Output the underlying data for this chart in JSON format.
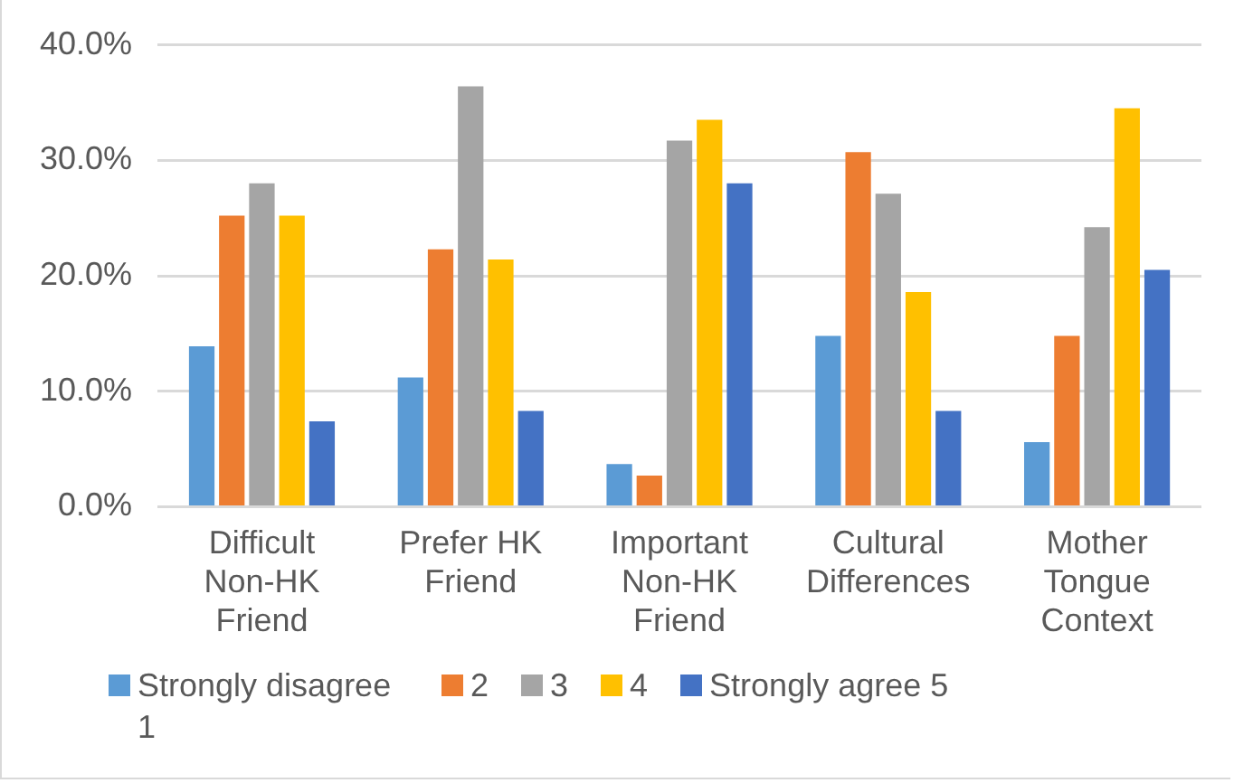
{
  "chart_data": {
    "type": "bar",
    "categories": [
      "Difficult Non-HK Friend",
      "Prefer HK Friend",
      "Important Non-HK Friend",
      "Cultural Differences",
      "Mother Tongue Context"
    ],
    "series": [
      {
        "name": "Strongly disagree 1",
        "color": "#5b9bd5",
        "values": [
          13.9,
          11.2,
          3.7,
          14.8,
          5.6
        ]
      },
      {
        "name": "2",
        "color": "#ed7d31",
        "values": [
          25.2,
          22.3,
          2.7,
          30.7,
          14.8
        ]
      },
      {
        "name": "3",
        "color": "#a5a5a5",
        "values": [
          28.0,
          36.4,
          31.7,
          27.1,
          24.2
        ]
      },
      {
        "name": "4",
        "color": "#ffc000",
        "values": [
          25.2,
          21.4,
          33.5,
          18.6,
          34.5
        ]
      },
      {
        "name": "Strongly agree 5",
        "color": "#4472c4",
        "values": [
          7.4,
          8.3,
          28.0,
          8.3,
          20.5
        ]
      }
    ],
    "ylim": [
      0,
      40
    ],
    "yticks": [
      {
        "value": 0,
        "label": "0.0%"
      },
      {
        "value": 10,
        "label": "10.0%"
      },
      {
        "value": 20,
        "label": "20.0%"
      },
      {
        "value": 30,
        "label": "30.0%"
      },
      {
        "value": 40,
        "label": "40.0%"
      }
    ],
    "grid": "y",
    "legend": "bottom"
  }
}
